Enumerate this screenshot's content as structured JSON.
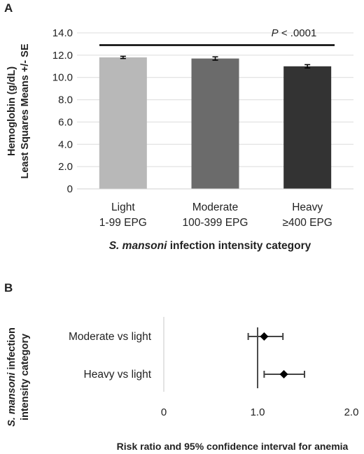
{
  "chart_data": [
    {
      "panel_label": "A",
      "type": "bar",
      "categories": [
        {
          "line1": "Light",
          "line2": "1-99 EPG"
        },
        {
          "line1": "Moderate",
          "line2": "100-399 EPG"
        },
        {
          "line1": "Heavy",
          "line2": "≥400 EPG"
        }
      ],
      "values": [
        11.8,
        11.7,
        11.0
      ],
      "errors": [
        0.1,
        0.15,
        0.15
      ],
      "bar_colors": [
        "#b8b8b8",
        "#6b6b6b",
        "#333333"
      ],
      "ylim": [
        0,
        14
      ],
      "yticks": [
        "0",
        "2.0",
        "4.0",
        "6.0",
        "8.0",
        "10.0",
        "12.0",
        "14.0"
      ],
      "ylabel_line1": "Hemoglobin (g/dL)",
      "ylabel_line2": "Least Squares Means +/- SE",
      "xlabel_italic": "S. mansoni",
      "xlabel_rest": " infection intensity category",
      "annotation_italic": "P",
      "annotation_rest": " < .0001",
      "bracket_y": 12.9
    },
    {
      "panel_label": "B",
      "type": "scatter",
      "categories": [
        "Moderate vs light",
        "Heavy vs light"
      ],
      "estimates": [
        1.07,
        1.28
      ],
      "ci_low": [
        0.9,
        1.07
      ],
      "ci_high": [
        1.27,
        1.5
      ],
      "xlim": [
        0,
        2.0
      ],
      "xticks": [
        "0",
        "1.0",
        "2.0"
      ],
      "reference_line": 1.0,
      "ylabel_italic": "S. mansoni",
      "ylabel_rest": " infection",
      "ylabel_line2": "intensity category",
      "xlabel": "Risk ratio and 95% confidence interval for anemia"
    }
  ]
}
